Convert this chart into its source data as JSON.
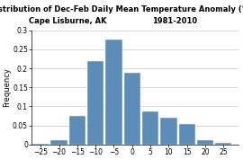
{
  "title_line1": "Distribution of Dec-Feb Daily Mean Temperature Anomaly (°C)",
  "title_line2_left": "Cape Lisburne, AK",
  "title_line2_right": "1981-2010",
  "ylabel": "Frequency",
  "bar_centers": [
    -25,
    -20,
    -15,
    -10,
    -5,
    0,
    5,
    10,
    15,
    20,
    25
  ],
  "bar_heights": [
    0.003,
    0.012,
    0.075,
    0.22,
    0.275,
    0.188,
    0.087,
    0.07,
    0.054,
    0.012,
    0.004
  ],
  "bar_width": 4.5,
  "bar_color": "#5b8db8",
  "bar_edgecolor": "#ffffff",
  "xlim": [
    -27.5,
    29
  ],
  "ylim": [
    0,
    0.3
  ],
  "xticks": [
    -25,
    -20,
    -15,
    -10,
    -5,
    0,
    5,
    10,
    15,
    20,
    25
  ],
  "yticks": [
    0,
    0.05,
    0.1,
    0.15,
    0.2,
    0.25,
    0.3
  ],
  "grid_color": "#c8c8c8",
  "background_color": "#ffffff",
  "title_fontsize": 6,
  "axis_label_fontsize": 6,
  "tick_fontsize": 5.5
}
